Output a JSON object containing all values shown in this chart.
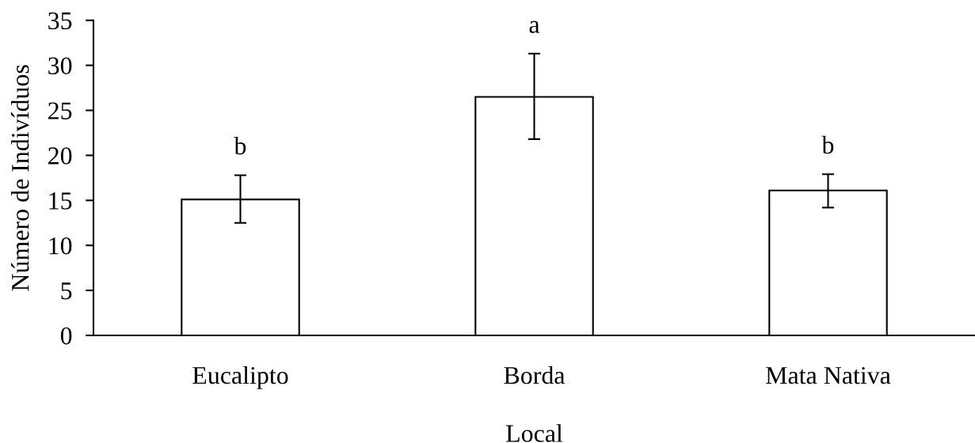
{
  "chart_data": {
    "type": "bar",
    "xlabel": "Local",
    "ylabel": "Número de Indivíduos",
    "categories": [
      "Eucalipto",
      "Borda",
      "Mata Nativa"
    ],
    "values": [
      15.1,
      26.5,
      16.1
    ],
    "errors": [
      [
        12.5,
        17.8
      ],
      [
        21.8,
        31.3
      ],
      [
        14.2,
        17.9
      ]
    ],
    "color": "#ffffff",
    "ylim": [
      0,
      35
    ],
    "yticks": [
      0,
      5,
      10,
      15,
      20,
      25,
      30,
      35
    ],
    "grid": false,
    "legend": false,
    "annotations": [
      "b",
      "a",
      "b"
    ]
  }
}
